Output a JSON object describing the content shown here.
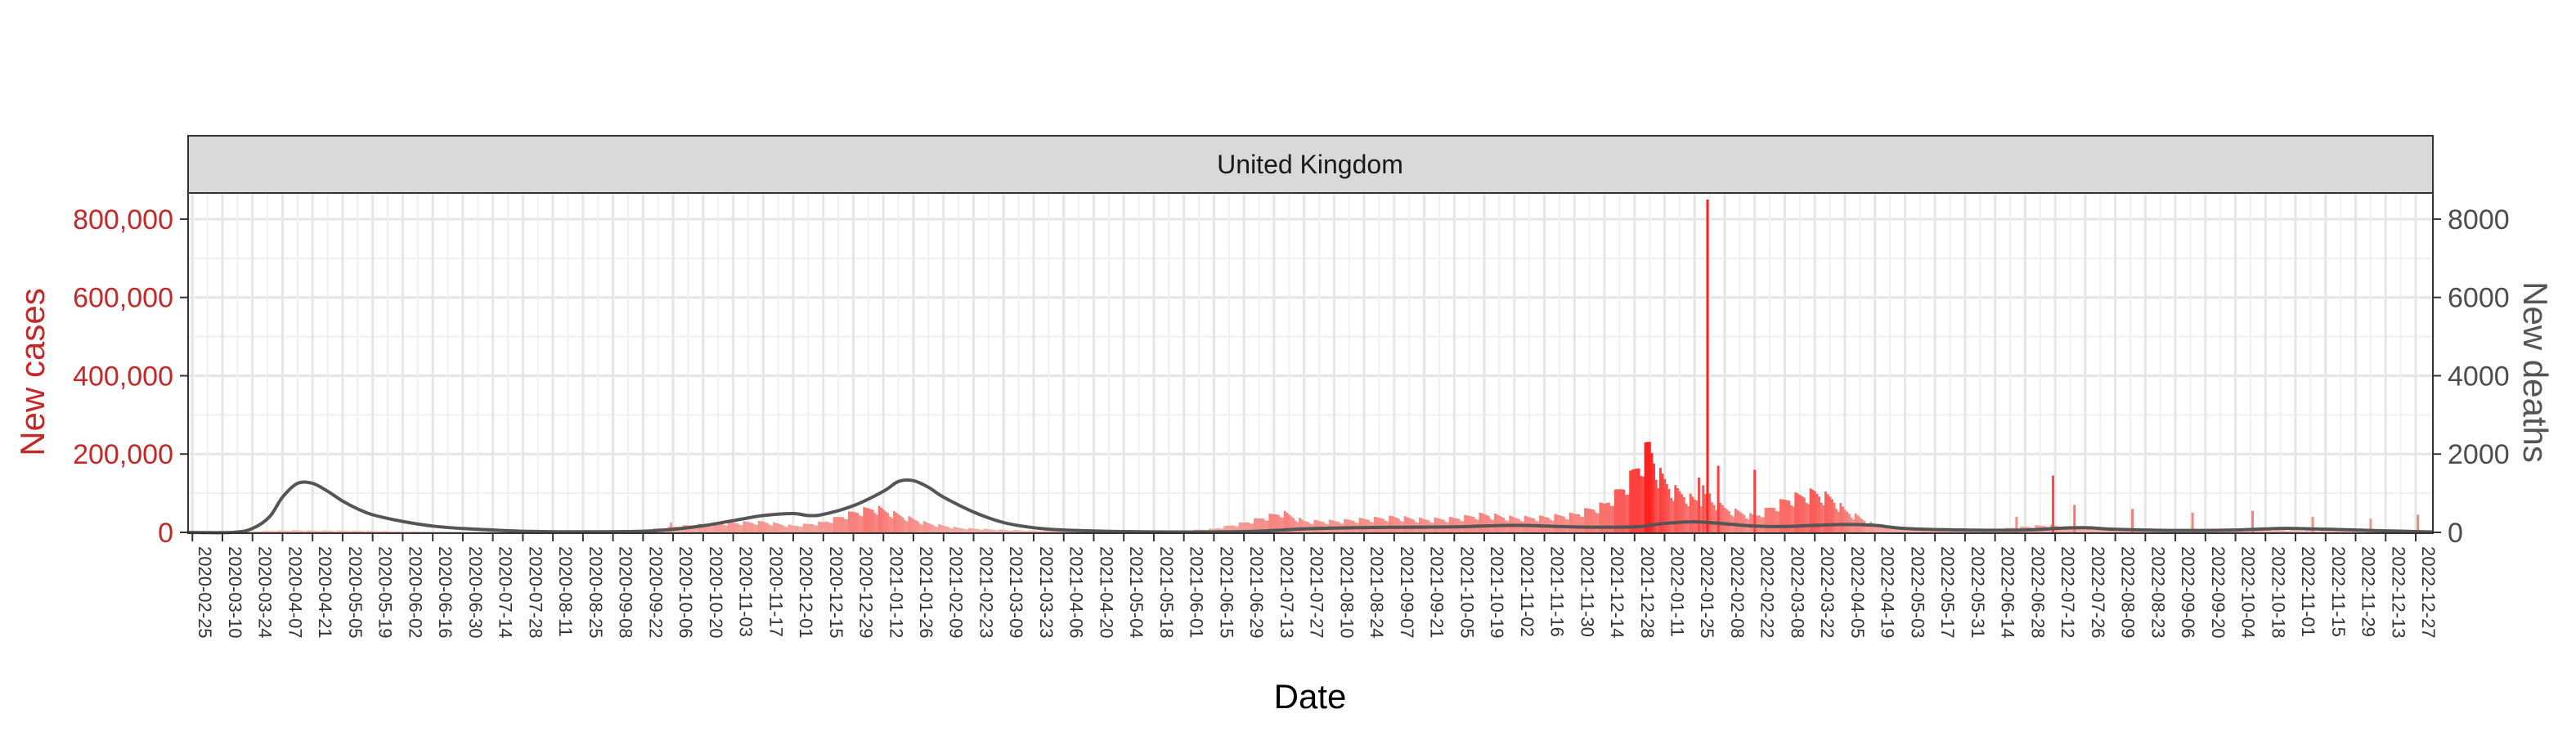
{
  "chart_data": {
    "type": "bar",
    "panel_title": "United Kingdom",
    "xlabel": "Date",
    "ylabel_left": "New cases",
    "ylabel_right": "New deaths",
    "ylim_left": [
      0,
      850000
    ],
    "ylim_right": [
      0,
      8500
    ],
    "left_ticks": [
      0,
      200000,
      400000,
      600000,
      800000
    ],
    "left_tick_labels": [
      "0",
      "200,000",
      "400,000",
      "600,000",
      "800,000"
    ],
    "right_ticks": [
      0,
      2000,
      4000,
      6000,
      8000
    ],
    "right_tick_labels": [
      "0",
      "2000",
      "4000",
      "6000",
      "8000"
    ],
    "x_range": [
      "2020-02-23",
      "2023-01-04"
    ],
    "x_ticks": [
      "2020-02-25",
      "2020-03-10",
      "2020-03-24",
      "2020-04-07",
      "2020-04-21",
      "2020-05-05",
      "2020-05-19",
      "2020-06-02",
      "2020-06-16",
      "2020-06-30",
      "2020-07-14",
      "2020-07-28",
      "2020-08-11",
      "2020-08-25",
      "2020-09-08",
      "2020-09-22",
      "2020-10-06",
      "2020-10-20",
      "2020-11-03",
      "2020-11-17",
      "2020-12-01",
      "2020-12-15",
      "2020-12-29",
      "2021-01-12",
      "2021-01-26",
      "2021-02-09",
      "2021-02-23",
      "2021-03-09",
      "2021-03-23",
      "2021-04-06",
      "2021-04-20",
      "2021-05-04",
      "2021-05-18",
      "2021-06-01",
      "2021-06-15",
      "2021-06-29",
      "2021-07-13",
      "2021-07-27",
      "2021-08-10",
      "2021-08-24",
      "2021-09-07",
      "2021-09-21",
      "2021-10-05",
      "2021-10-19",
      "2021-11-02",
      "2021-11-16",
      "2021-11-30",
      "2021-12-14",
      "2021-12-28",
      "2022-01-11",
      "2022-01-25",
      "2022-02-08",
      "2022-02-22",
      "2022-03-08",
      "2022-03-22",
      "2022-04-05",
      "2022-04-19",
      "2022-05-03",
      "2022-05-17",
      "2022-05-31",
      "2022-06-14",
      "2022-06-28",
      "2022-07-12",
      "2022-07-26",
      "2022-08-09",
      "2022-08-23",
      "2022-09-06",
      "2022-09-20",
      "2022-10-04",
      "2022-10-18",
      "2022-11-01",
      "2022-11-15",
      "2022-11-29",
      "2022-12-13",
      "2022-12-27"
    ],
    "grid": true,
    "series": [
      {
        "name": "New cases",
        "kind": "bar",
        "color_low": "#f2c4bc",
        "color_high": "#ff2020",
        "points": [
          [
            "2020-03-01",
            0
          ],
          [
            "2020-03-20",
            2000
          ],
          [
            "2020-04-10",
            5000
          ],
          [
            "2020-05-10",
            4000
          ],
          [
            "2020-06-15",
            1500
          ],
          [
            "2020-07-20",
            800
          ],
          [
            "2020-08-25",
            1500
          ],
          [
            "2020-09-20",
            5000
          ],
          [
            "2020-10-06",
            14000
          ],
          [
            "2020-10-20",
            20000
          ],
          [
            "2020-11-03",
            24000
          ],
          [
            "2020-11-17",
            26000
          ],
          [
            "2020-12-01",
            16000
          ],
          [
            "2020-12-15",
            25000
          ],
          [
            "2020-12-29",
            50000
          ],
          [
            "2021-01-08",
            62000
          ],
          [
            "2021-01-20",
            42000
          ],
          [
            "2021-02-02",
            22000
          ],
          [
            "2021-02-16",
            11000
          ],
          [
            "2021-03-09",
            6000
          ],
          [
            "2021-04-06",
            3000
          ],
          [
            "2021-05-04",
            2500
          ],
          [
            "2021-06-01",
            4000
          ],
          [
            "2021-06-15",
            9000
          ],
          [
            "2021-06-29",
            24000
          ],
          [
            "2021-07-17",
            50000
          ],
          [
            "2021-07-27",
            28000
          ],
          [
            "2021-08-10",
            28000
          ],
          [
            "2021-08-24",
            33000
          ],
          [
            "2021-09-07",
            38000
          ],
          [
            "2021-09-21",
            32000
          ],
          [
            "2021-10-05",
            35000
          ],
          [
            "2021-10-19",
            45000
          ],
          [
            "2021-11-02",
            36000
          ],
          [
            "2021-11-16",
            38000
          ],
          [
            "2021-11-30",
            45000
          ],
          [
            "2021-12-14",
            70000
          ],
          [
            "2021-12-24",
            120000
          ],
          [
            "2021-12-31",
            180000
          ],
          [
            "2022-01-04",
            220000
          ],
          [
            "2022-01-08",
            150000
          ],
          [
            "2022-01-14",
            110000
          ],
          [
            "2022-01-20",
            95000
          ],
          [
            "2022-01-25",
            80000
          ],
          [
            "2022-01-30",
            85000
          ],
          [
            "2022-02-08",
            60000
          ],
          [
            "2022-02-22",
            40000
          ],
          [
            "2022-03-01",
            60000
          ],
          [
            "2022-03-10",
            85000
          ],
          [
            "2022-03-22",
            100000
          ],
          [
            "2022-03-30",
            85000
          ],
          [
            "2022-04-05",
            55000
          ],
          [
            "2022-04-19",
            18000
          ],
          [
            "2022-05-03",
            9000
          ],
          [
            "2022-05-17",
            6000
          ],
          [
            "2022-05-31",
            5000
          ],
          [
            "2022-06-14",
            8000
          ],
          [
            "2022-06-28",
            14000
          ],
          [
            "2022-07-08",
            18000
          ],
          [
            "2022-07-26",
            9000
          ],
          [
            "2022-08-23",
            6000
          ],
          [
            "2022-09-20",
            5000
          ],
          [
            "2022-10-18",
            6000
          ],
          [
            "2022-11-15",
            3500
          ],
          [
            "2022-12-13",
            3000
          ],
          [
            "2022-12-31",
            3000
          ]
        ],
        "spikes": [
          [
            "2022-01-31",
            850000
          ],
          [
            "2022-02-05",
            170000
          ],
          [
            "2022-01-27",
            140000
          ],
          [
            "2022-01-29",
            120000
          ],
          [
            "2022-02-01",
            100000
          ],
          [
            "2022-02-22",
            160000
          ],
          [
            "2022-07-11",
            145000
          ],
          [
            "2022-07-21",
            70000
          ],
          [
            "2022-06-24",
            40000
          ],
          [
            "2022-08-17",
            60000
          ],
          [
            "2022-09-14",
            50000
          ],
          [
            "2022-10-12",
            55000
          ],
          [
            "2022-11-09",
            40000
          ],
          [
            "2022-12-06",
            35000
          ],
          [
            "2022-12-28",
            45000
          ],
          [
            "2020-10-05",
            25000
          ]
        ]
      },
      {
        "name": "New deaths",
        "kind": "line",
        "color": "#555555",
        "points": [
          [
            "2020-02-23",
            0
          ],
          [
            "2020-03-15",
            0
          ],
          [
            "2020-03-24",
            100
          ],
          [
            "2020-04-01",
            400
          ],
          [
            "2020-04-07",
            900
          ],
          [
            "2020-04-14",
            1250
          ],
          [
            "2020-04-21",
            1250
          ],
          [
            "2020-04-28",
            1050
          ],
          [
            "2020-05-05",
            800
          ],
          [
            "2020-05-12",
            600
          ],
          [
            "2020-05-19",
            450
          ],
          [
            "2020-06-02",
            280
          ],
          [
            "2020-06-16",
            160
          ],
          [
            "2020-06-30",
            100
          ],
          [
            "2020-07-28",
            30
          ],
          [
            "2020-08-25",
            15
          ],
          [
            "2020-09-22",
            30
          ],
          [
            "2020-10-06",
            80
          ],
          [
            "2020-10-20",
            170
          ],
          [
            "2020-11-03",
            300
          ],
          [
            "2020-11-17",
            430
          ],
          [
            "2020-12-01",
            480
          ],
          [
            "2020-12-08",
            430
          ],
          [
            "2020-12-15",
            460
          ],
          [
            "2020-12-29",
            680
          ],
          [
            "2021-01-12",
            1050
          ],
          [
            "2021-01-19",
            1300
          ],
          [
            "2021-01-26",
            1320
          ],
          [
            "2021-02-02",
            1150
          ],
          [
            "2021-02-09",
            900
          ],
          [
            "2021-02-23",
            520
          ],
          [
            "2021-03-09",
            250
          ],
          [
            "2021-03-23",
            120
          ],
          [
            "2021-04-06",
            60
          ],
          [
            "2021-05-04",
            20
          ],
          [
            "2021-06-01",
            10
          ],
          [
            "2021-06-29",
            20
          ],
          [
            "2021-07-13",
            50
          ],
          [
            "2021-07-27",
            90
          ],
          [
            "2021-08-10",
            110
          ],
          [
            "2021-09-07",
            130
          ],
          [
            "2021-10-05",
            140
          ],
          [
            "2021-11-02",
            180
          ],
          [
            "2021-11-30",
            140
          ],
          [
            "2021-12-28",
            140
          ],
          [
            "2022-01-11",
            230
          ],
          [
            "2022-01-25",
            270
          ],
          [
            "2022-02-08",
            220
          ],
          [
            "2022-02-22",
            160
          ],
          [
            "2022-03-08",
            150
          ],
          [
            "2022-03-22",
            180
          ],
          [
            "2022-04-05",
            200
          ],
          [
            "2022-04-19",
            180
          ],
          [
            "2022-05-03",
            100
          ],
          [
            "2022-05-31",
            60
          ],
          [
            "2022-06-28",
            60
          ],
          [
            "2022-07-12",
            100
          ],
          [
            "2022-07-26",
            120
          ],
          [
            "2022-08-09",
            80
          ],
          [
            "2022-09-06",
            50
          ],
          [
            "2022-10-04",
            60
          ],
          [
            "2022-10-18",
            90
          ],
          [
            "2022-11-01",
            100
          ],
          [
            "2022-11-29",
            60
          ],
          [
            "2022-12-27",
            20
          ],
          [
            "2023-01-04",
            10
          ]
        ]
      }
    ]
  }
}
